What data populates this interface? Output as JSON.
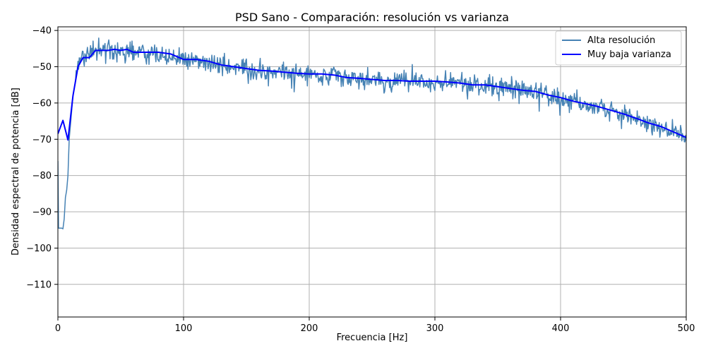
{
  "chart_data": {
    "type": "line",
    "title": "PSD Sano - Comparación: resolución vs varianza",
    "xlabel": "Frecuencia [Hz]",
    "ylabel": "Densidad espectral de potencia [dB]",
    "xlim": [
      0,
      500
    ],
    "ylim": [
      -119,
      -39
    ],
    "xticks": [
      0,
      100,
      200,
      300,
      400,
      500
    ],
    "yticks": [
      -110,
      -100,
      -90,
      -80,
      -70,
      -60,
      -50,
      -40
    ],
    "xtick_labels": [
      "0",
      "100",
      "200",
      "300",
      "400",
      "500"
    ],
    "ytick_labels": [
      "−110",
      "−100",
      "−90",
      "−80",
      "−70",
      "−60",
      "−50",
      "−40"
    ],
    "grid": true,
    "legend_position": "top-right",
    "series": [
      {
        "name": "Alta resolución",
        "color": "#4682b4",
        "style": "noisy-envelope",
        "x": [
          0,
          0.5,
          1,
          2,
          3,
          4,
          5,
          6,
          7,
          8,
          9,
          10,
          11,
          12,
          13,
          14,
          15,
          16,
          18,
          20,
          22,
          25,
          28,
          30,
          35,
          40,
          45,
          50,
          55,
          60,
          70,
          80,
          90,
          100,
          110,
          120,
          130,
          140,
          150,
          160,
          170,
          180,
          190,
          200,
          210,
          220,
          230,
          240,
          250,
          260,
          270,
          280,
          290,
          300,
          310,
          320,
          330,
          340,
          350,
          360,
          370,
          380,
          390,
          400,
          410,
          420,
          430,
          440,
          450,
          460,
          470,
          480,
          490,
          500
        ],
        "values": [
          -76,
          -94.5,
          -94.5,
          -94.5,
          -94.5,
          -94.7,
          -92,
          -86,
          -84,
          -80,
          -70,
          -66,
          -62,
          -58,
          -56,
          -54,
          -51,
          -50,
          -48,
          -47.5,
          -47,
          -46,
          -46,
          -45.5,
          -45.3,
          -45.2,
          -45.5,
          -45.5,
          -46,
          -46,
          -46.2,
          -46.5,
          -48,
          -48,
          -48.5,
          -48.7,
          -49.5,
          -50.5,
          -50.5,
          -51,
          -51,
          -51.5,
          -52,
          -52,
          -52,
          -52.5,
          -53,
          -53.2,
          -53.5,
          -53.7,
          -53.8,
          -54,
          -54,
          -54,
          -54,
          -54.5,
          -55,
          -55,
          -55.5,
          -56,
          -56.5,
          -57,
          -58,
          -59,
          -59.5,
          -60.5,
          -61,
          -62,
          -63.5,
          -64.5,
          -66,
          -67,
          -68.5,
          -69
        ]
      },
      {
        "name": "Muy baja varianza",
        "color": "#0000ff",
        "style": "smooth",
        "x": [
          0,
          4,
          8,
          12,
          16,
          20,
          25,
          30,
          35,
          40,
          45,
          50,
          55,
          60,
          70,
          80,
          90,
          100,
          110,
          120,
          130,
          140,
          150,
          160,
          170,
          180,
          190,
          200,
          210,
          220,
          230,
          240,
          250,
          260,
          270,
          280,
          290,
          300,
          310,
          320,
          330,
          340,
          350,
          360,
          370,
          380,
          390,
          400,
          410,
          420,
          430,
          440,
          450,
          460,
          470,
          480,
          490,
          500
        ],
        "values": [
          -68.5,
          -64.8,
          -70.2,
          -58,
          -50,
          -47.5,
          -47.5,
          -45.5,
          -45.5,
          -45.5,
          -45.2,
          -45.5,
          -45.2,
          -46,
          -46,
          -46,
          -46.5,
          -48,
          -48,
          -48.5,
          -49.5,
          -50,
          -50.5,
          -51,
          -51.2,
          -51.5,
          -51.8,
          -52,
          -52,
          -52.3,
          -53,
          -53.2,
          -53.5,
          -53.8,
          -53.8,
          -54,
          -54,
          -54,
          -54.2,
          -54.5,
          -55,
          -55,
          -55.5,
          -56,
          -56.5,
          -56.8,
          -57.8,
          -58.5,
          -59.5,
          -60.2,
          -61,
          -62,
          -63,
          -64.2,
          -65.5,
          -66.5,
          -68,
          -69.5
        ]
      }
    ]
  }
}
